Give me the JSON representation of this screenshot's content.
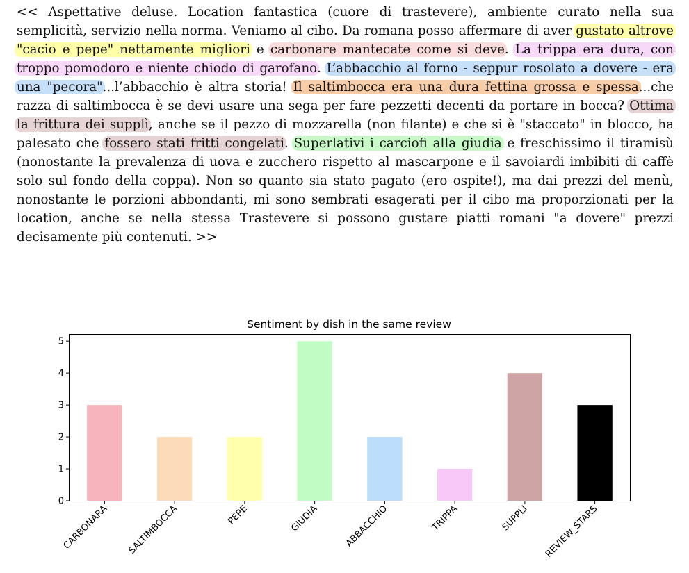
{
  "review": {
    "segments": [
      {
        "text": "<< Aspettative deluse. Location fantastica (cuore di trastevere), ambiente curato nella sua semplicità, servizio nella norma. Veniamo al cibo. Da romana posso affer­mare di aver "
      },
      {
        "text": "gustato altrove \"cacio e pepe\" nettamente migliori",
        "color": "#ffffaa"
      },
      {
        "text": " e "
      },
      {
        "text": "carbonare mantecate come si deve",
        "color": "#fadcdc"
      },
      {
        "text": ". "
      },
      {
        "text": "La trippa era dura, con troppo pomodoro e niente chiodo di garofano",
        "color": "#f8d8f8"
      },
      {
        "text": ". "
      },
      {
        "text": "L’abbacchio al forno - seppur rosolato a dovere - era una \"pecora\"",
        "color": "#c6e0fa"
      },
      {
        "text": "...l’abbacchio è altra storia! "
      },
      {
        "text": "Il saltimbocca era una dura fettina grossa e spessa",
        "color": "#f8cca6"
      },
      {
        "text": "...che razza di saltimbocca è se devi usare una sega per fare pezzetti decenti da portare in bocca? "
      },
      {
        "text": "Ottima la frittura dei supplì",
        "color": "#e6d4d4"
      },
      {
        "text": ", anche se il pezzo di mozzarella (non filante) e che si è \"staccato\" in blocco, ha palesato che "
      },
      {
        "text": "fossero stati fritti congelati",
        "color": "#e6d4d4"
      },
      {
        "text": ". "
      },
      {
        "text": "Super­lativi i carciofi alla giudia",
        "color": "#c8fac8"
      },
      {
        "text": " e freschissimo il tiramisù (nonostante la prevalenza di uova e zucchero rispetto al mascarpone e il savoiardi imbibiti di caffè solo sul fondo della coppa). Non so quanto sia stato pagato (ero ospite!), ma dai prezzi del menù, nonostante le porzioni abbondanti, mi sono sembrati esagerati per il cibo ma proporzionati per la location, anche se nella stessa Trastevere si possono gustare piatti romani \"a dovere\" prezzi decisamente più contenuti. >>"
      }
    ]
  },
  "chart_data": {
    "type": "bar",
    "title": "Sentiment by dish in the same review",
    "xlabel": "",
    "ylabel": "",
    "categories": [
      "CARBONARA",
      "SALTIMBOCCA",
      "PEPE",
      "GIUDIA",
      "ABBACCHIO",
      "TRIPPA",
      "SUPPLI",
      "REVIEW_STARS"
    ],
    "values": [
      3,
      2,
      2,
      5,
      2,
      1,
      4,
      3
    ],
    "colors": [
      "#f8b4bc",
      "#fcdcb8",
      "#ffffac",
      "#c0fcc4",
      "#bcdefc",
      "#f8c8f8",
      "#cea4a4",
      "#000000"
    ],
    "ylim": [
      0,
      5.2
    ],
    "yticks": [
      0,
      1,
      2,
      3,
      4,
      5
    ],
    "grid": false,
    "legend": "none"
  }
}
